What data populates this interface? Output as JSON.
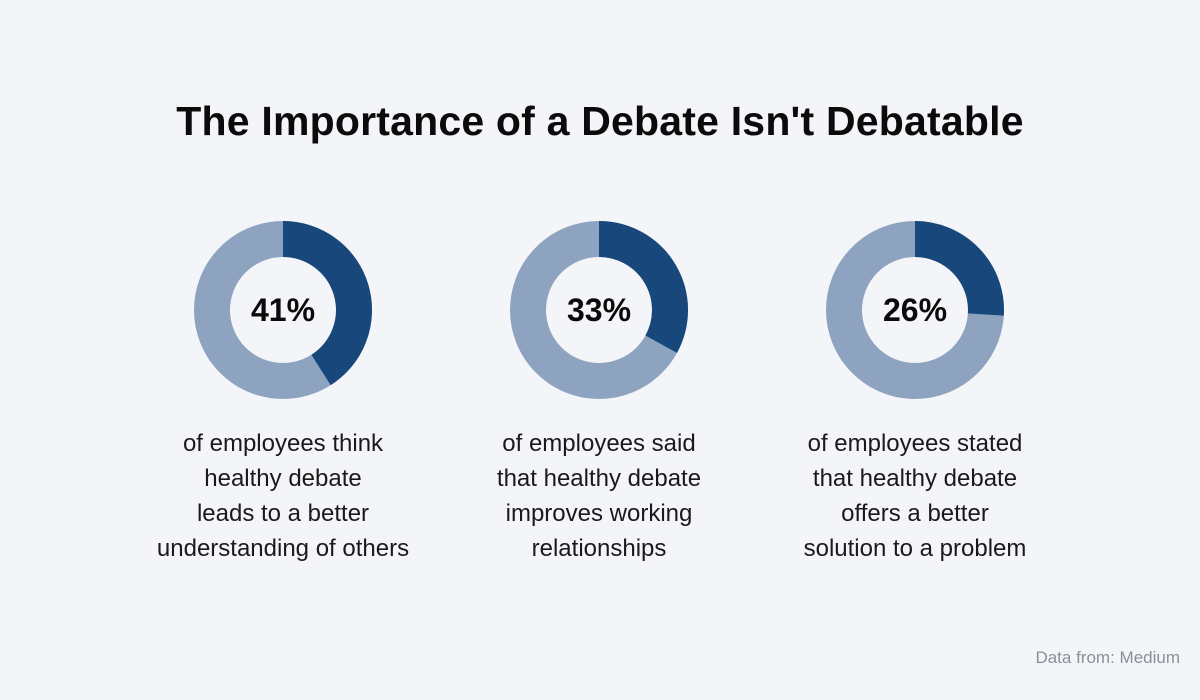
{
  "title": "The Importance of a Debate Isn't Debatable",
  "source": "Data from: Medium",
  "colors": {
    "highlight": "#18477c",
    "remainder": "#8da3bf",
    "hole": "#f4f5f9"
  },
  "chart_data": [
    {
      "type": "pie",
      "value": 41,
      "label": "41%",
      "caption": [
        "of employees think",
        "healthy debate",
        "leads to a better",
        "understanding of others"
      ]
    },
    {
      "type": "pie",
      "value": 33,
      "label": "33%",
      "caption": [
        "of employees said",
        "that healthy debate",
        "improves working",
        "relationships"
      ]
    },
    {
      "type": "pie",
      "value": 26,
      "label": "26%",
      "caption": [
        "of employees stated",
        "that healthy debate",
        "offers a better",
        "solution to a problem"
      ]
    }
  ]
}
